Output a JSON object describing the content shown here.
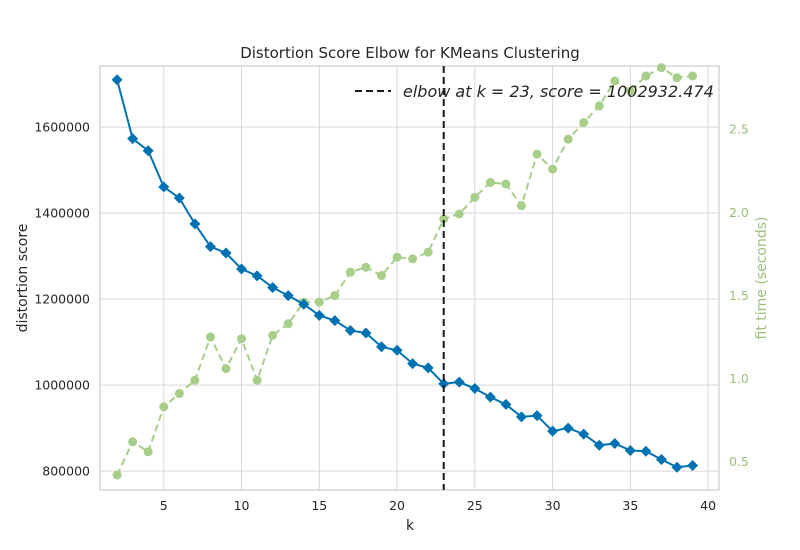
{
  "chart_data": {
    "type": "line",
    "title": "Distortion Score Elbow for KMeans Clustering",
    "xlabel": "k",
    "ylabel": "distortion score",
    "ylabel_right": "fit time (seconds)",
    "xlim": [
      0.9,
      40.7
    ],
    "ylim": [
      756000,
      1742000
    ],
    "ylim_right": [
      0.33,
      2.88
    ],
    "x_ticks": [
      5,
      10,
      15,
      20,
      25,
      30,
      35,
      40
    ],
    "x_tick_labels": [
      "5",
      "10",
      "15",
      "20",
      "25",
      "30",
      "35",
      "40"
    ],
    "y_ticks": [
      800000,
      1000000,
      1200000,
      1400000,
      1600000
    ],
    "y_tick_labels": [
      "800000",
      "1000000",
      "1200000",
      "1400000",
      "1600000"
    ],
    "y_right_ticks": [
      0.5,
      1.0,
      1.5,
      2.0,
      2.5
    ],
    "y_right_tick_labels": [
      "0.5",
      "1.0",
      "1.5",
      "2.0",
      "2.5"
    ],
    "grid": true,
    "legend_position": "top-right",
    "elbow": {
      "k": 23,
      "label": "elbow at k = 23, score = 1002932.474",
      "color": "#1a1a1a"
    },
    "x": [
      2,
      3,
      4,
      5,
      6,
      7,
      8,
      9,
      10,
      11,
      12,
      13,
      14,
      15,
      16,
      17,
      18,
      19,
      20,
      21,
      22,
      23,
      24,
      25,
      26,
      27,
      28,
      29,
      30,
      31,
      32,
      33,
      34,
      35,
      36,
      37,
      38,
      39
    ],
    "series": [
      {
        "axis": "left",
        "color": "#0072b2",
        "values": [
          1710000,
          1573000,
          1545000,
          1461000,
          1435000,
          1375000,
          1322000,
          1307000,
          1270000,
          1254000,
          1227000,
          1208000,
          1188000,
          1162000,
          1150000,
          1127000,
          1121000,
          1089000,
          1081000,
          1050000,
          1040000,
          1003000,
          1007000,
          992000,
          972000,
          955000,
          926000,
          929000,
          893000,
          900000,
          886000,
          860000,
          864000,
          848000,
          846000,
          827000,
          809000,
          813000
        ]
      },
      {
        "axis": "right",
        "color": "#a8cf8a",
        "style": "dashed",
        "values": [
          0.42,
          0.62,
          0.56,
          0.83,
          0.91,
          0.99,
          1.25,
          1.06,
          1.24,
          0.99,
          1.26,
          1.33,
          1.46,
          1.46,
          1.5,
          1.64,
          1.67,
          1.62,
          1.73,
          1.72,
          1.76,
          1.96,
          1.99,
          2.09,
          2.18,
          2.17,
          2.04,
          2.35,
          2.26,
          2.44,
          2.54,
          2.64,
          2.79,
          2.73,
          2.82,
          2.87,
          2.81,
          2.82
        ]
      }
    ]
  }
}
